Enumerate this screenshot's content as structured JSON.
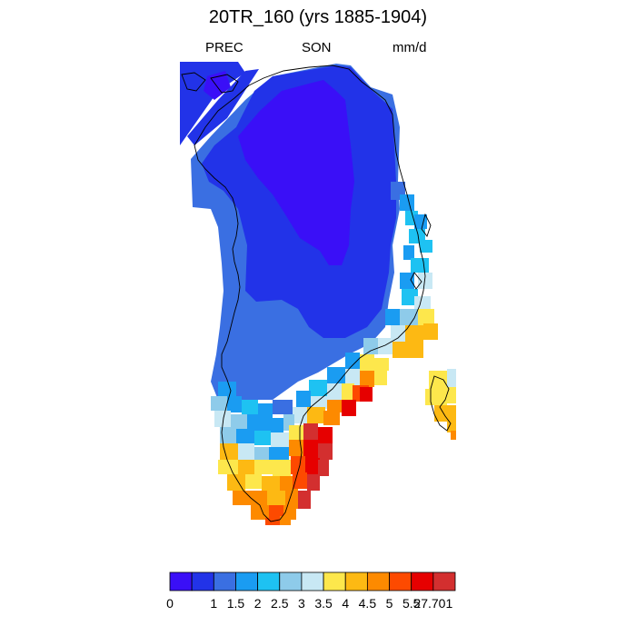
{
  "title": "20TR_160 (yrs 1885-1904)",
  "left_label": "PREC",
  "center_label": "SON",
  "right_label": "mm/d",
  "colorbar": {
    "colors": [
      "#3a0ff7",
      "#2233e8",
      "#3a6fe2",
      "#1a9cf2",
      "#1ec2f2",
      "#8ecbea",
      "#c8e8f4",
      "#fde74c",
      "#fdb913",
      "#fd8a00",
      "#fd4a00",
      "#e60000",
      "#d32f2f"
    ],
    "tick_labels": [
      "0",
      "1",
      "1.5",
      "2",
      "2.5",
      "3",
      "3.5",
      "4",
      "4.5",
      "5",
      "5.5",
      "27.701"
    ]
  },
  "map_colors": {
    "purple": "#3a0ff7",
    "blue": "#2233e8",
    "midblue": "#3a6fe2",
    "skyblue": "#1a9cf2",
    "cyan": "#1ec2f2",
    "lightblue": "#8ecbea",
    "paleblue": "#c8e8f4",
    "yellow": "#fde74c",
    "gold": "#fdb913",
    "orange": "#fd8a00",
    "redorange": "#fd4a00",
    "red": "#e60000",
    "darkred": "#d32f2f"
  }
}
